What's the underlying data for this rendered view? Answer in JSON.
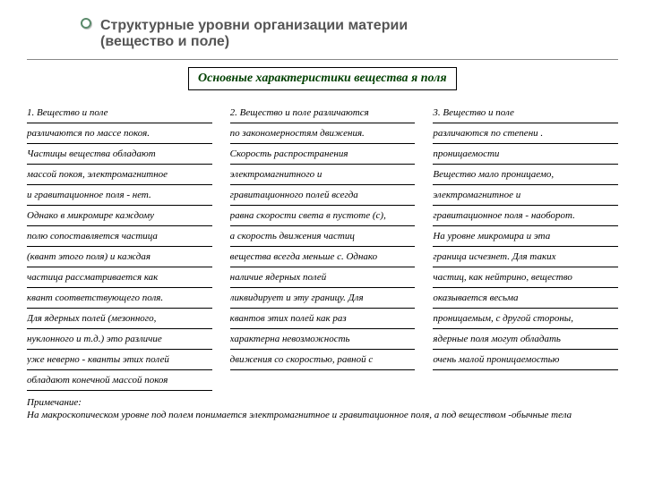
{
  "title": {
    "line1": "Структурные уровни организации материи",
    "line2": "(вещество и поле)",
    "fontsize": 16,
    "color": "#555555"
  },
  "subtitle": {
    "text": "Основные характеристики вещества я поля",
    "fontsize": 14,
    "color": "#004000"
  },
  "columns_fontsize": 11,
  "col1": [
    "1. Вещество и поле",
    "различаются по массе покоя.",
    "Частицы вещества обладают",
    "массой покоя, электромагнитное",
    "и гравитационное поля - нет.",
    "Однако в микромире каждому",
    "полю сопоставляется частица",
    "(квант этого поля) и каждая",
    "частица рассматривается как",
    "квант соответствующего поля.",
    "Для ядерных полей (мезонного,",
    "нуклонного и т.д.) это различие",
    "уже неверно - кванты этих полей",
    "обладают конечной массой покоя"
  ],
  "col2": [
    "2. Вещество и поле различаются",
    "по закономерностям движения.",
    "Скорость распространения",
    "электромагнитного и",
    "гравитационного полей всегда",
    "равна скорости света в пустоте (с),",
    "а скорость движения частиц",
    "вещества всегда меньше с. Однако",
    "наличие ядерных полей",
    "ликвидирует и эту границу. Для",
    "квантов этих полей как раз",
    "характерна невозможность",
    "движения со скоростью, равной с"
  ],
  "col3": [
    "3. Вещество и поле",
    "различаются по степени .",
    "проницаемости",
    "Вещество мало проницаемо,",
    "электромагнитное и",
    "гравитационное поля - наоборот.",
    "На уровне микромира и эта",
    "граница исчезнет. Для таких",
    "частиц, как нейтрино, вещество",
    "оказывается весьма",
    "проницаемым, с другой стороны,",
    "ядерные поля могут обладать",
    "очень малой проницаемостью"
  ],
  "footnote": {
    "label": "Примечание:",
    "text": "На макроскопическом уровне под полем понимается электромагнитное и гравитационное поля, а под веществом -обычные тела",
    "fontsize": 11
  },
  "colors": {
    "bullet_ring": "#5b8a6b",
    "hr": "#888888",
    "underline": "#000000",
    "background": "#ffffff"
  }
}
